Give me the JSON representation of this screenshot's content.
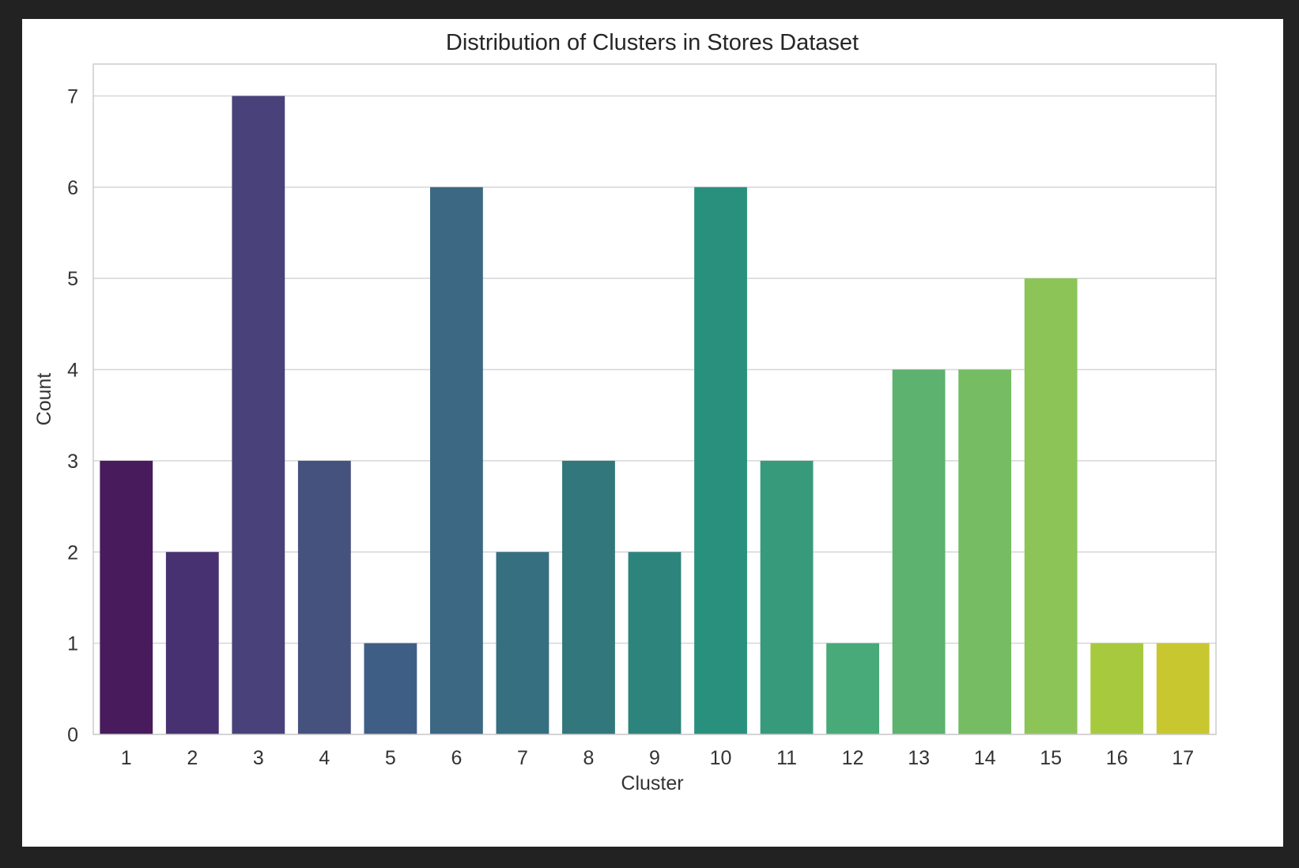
{
  "chart_data": {
    "type": "bar",
    "title": "Distribution of Clusters in Stores Dataset",
    "xlabel": "Cluster",
    "ylabel": "Count",
    "categories": [
      "1",
      "2",
      "3",
      "4",
      "5",
      "6",
      "7",
      "8",
      "9",
      "10",
      "11",
      "12",
      "13",
      "14",
      "15",
      "16",
      "17"
    ],
    "values": [
      3,
      2,
      7,
      3,
      1,
      6,
      2,
      3,
      2,
      6,
      3,
      1,
      4,
      4,
      5,
      1,
      1
    ],
    "yticks": [
      "0",
      "1",
      "2",
      "3",
      "4",
      "5",
      "6",
      "7"
    ],
    "ylim": [
      0,
      7.35
    ],
    "grid": true,
    "palette": "viridis",
    "colors": [
      "#481B5C",
      "#473170",
      "#48417A",
      "#46527E",
      "#3F5E85",
      "#3C6883",
      "#366F80",
      "#31777C",
      "#2D847C",
      "#2A907E",
      "#379B7B",
      "#48AA78",
      "#5CB26E",
      "#76BC63",
      "#8CC458",
      "#A7C93E",
      "#C8C72F"
    ]
  }
}
